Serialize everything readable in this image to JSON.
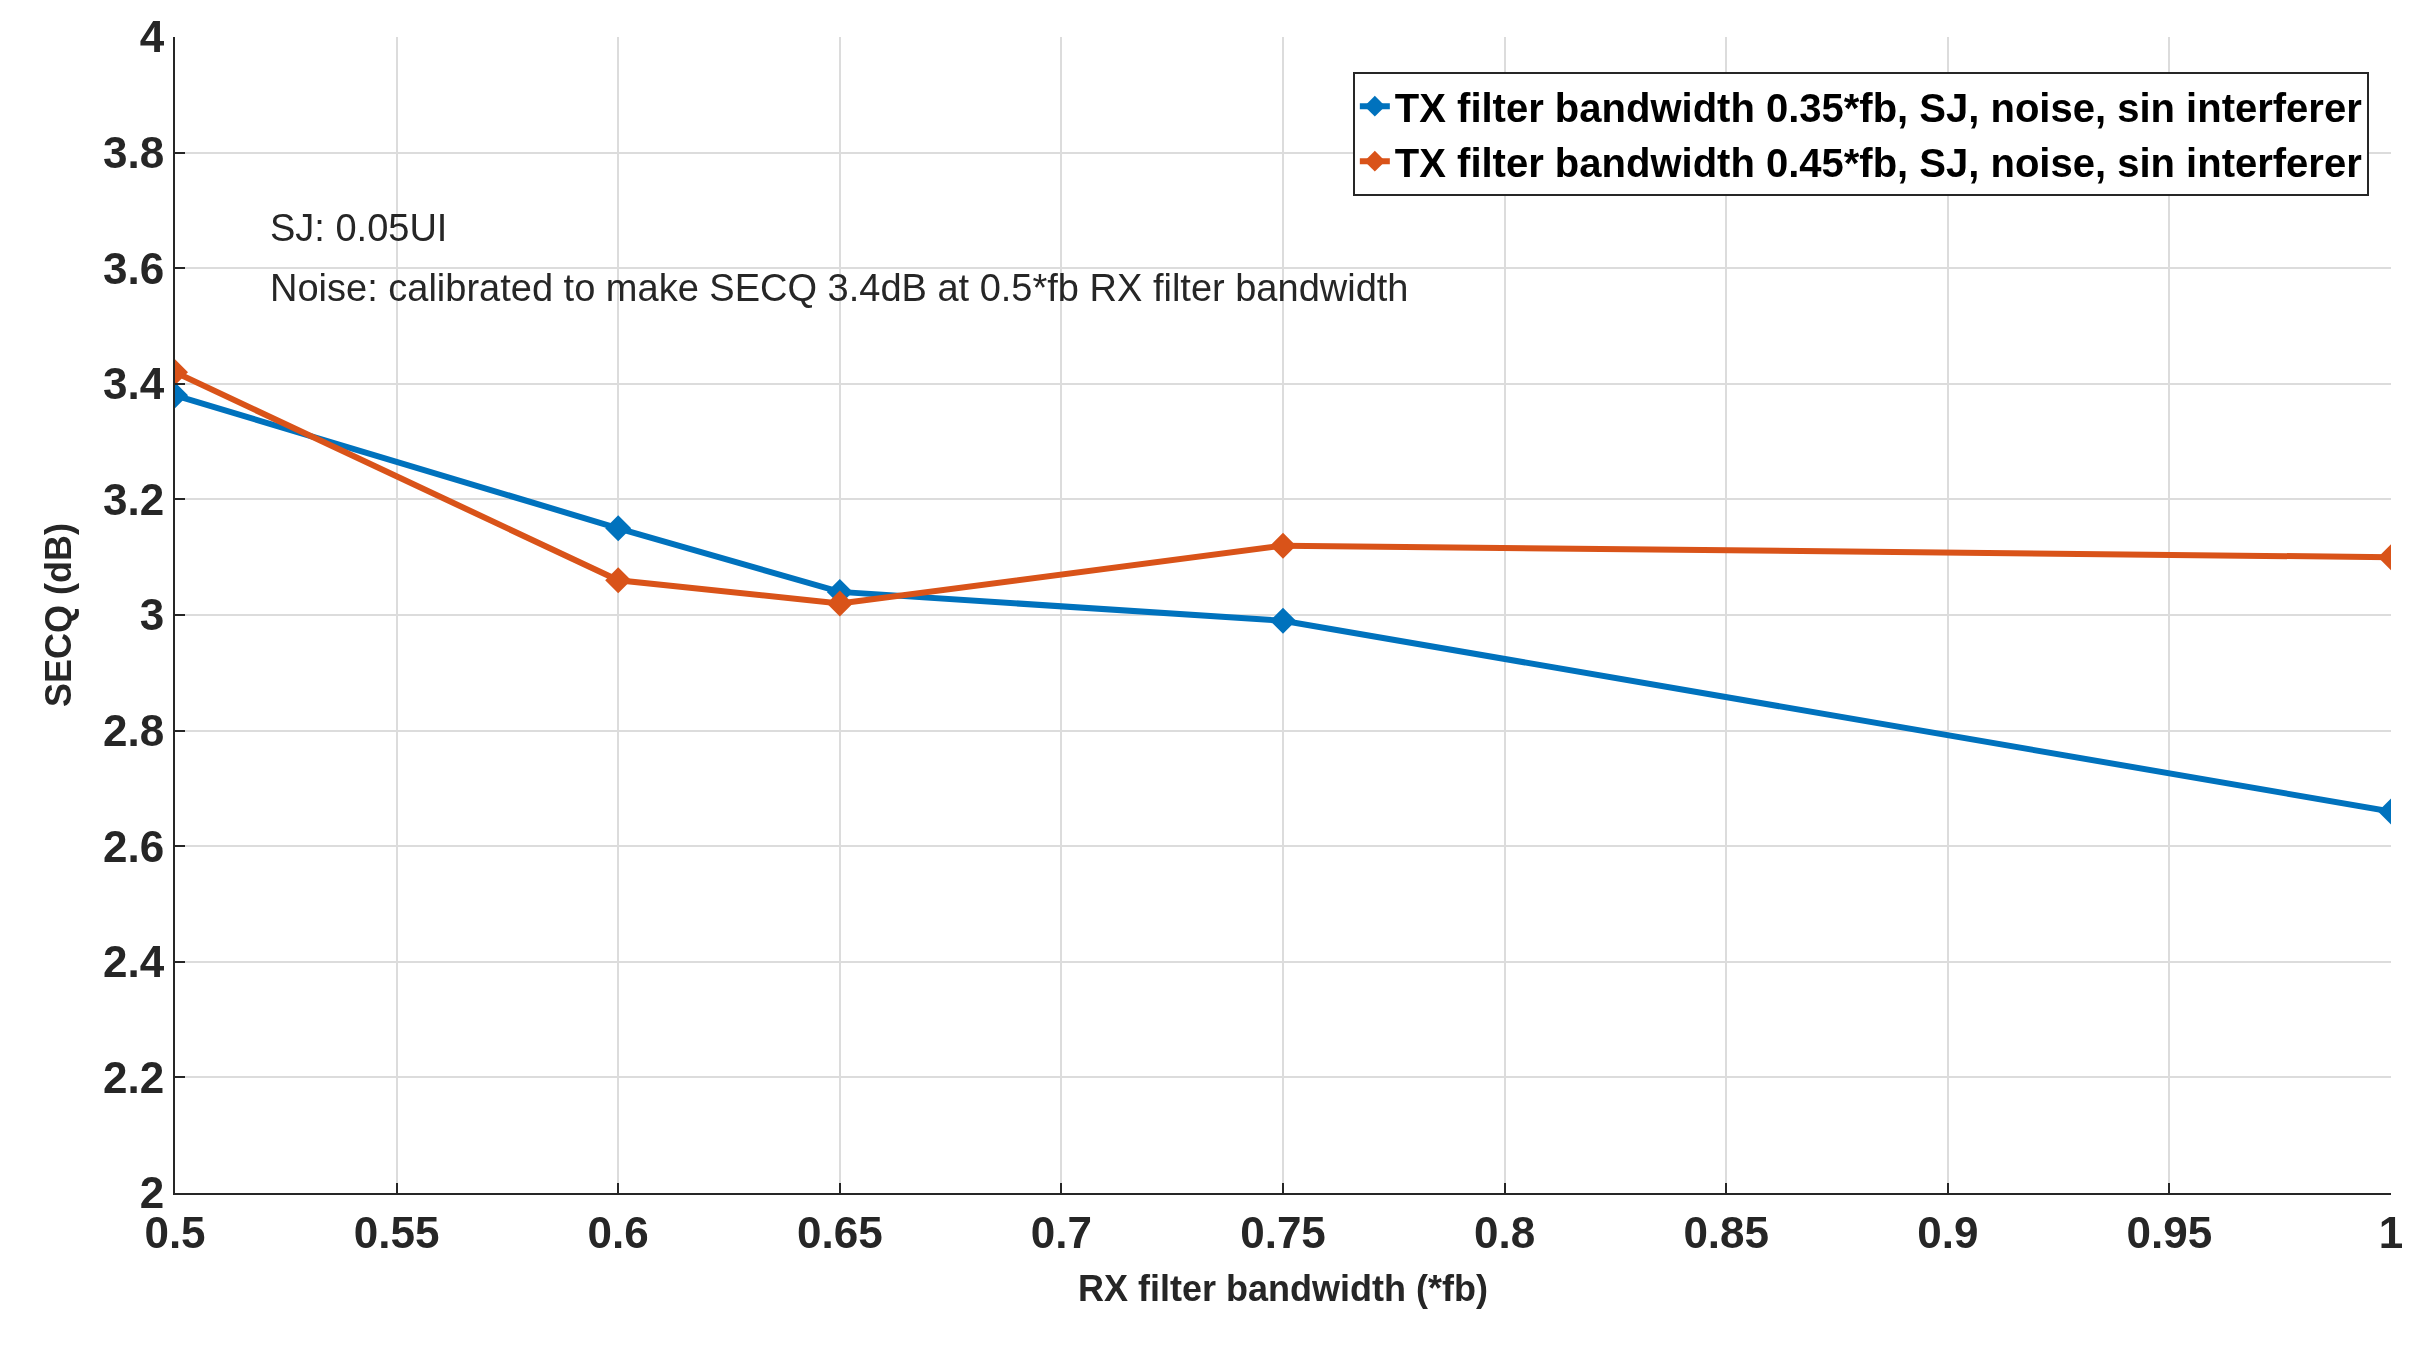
{
  "chart_data": {
    "type": "line",
    "xlabel": "RX filter bandwidth (*fb)",
    "ylabel": "SECQ (dB)",
    "x": [
      0.5,
      0.6,
      0.65,
      0.75,
      1
    ],
    "series": [
      {
        "name": "TX filter bandwidth 0.35*fb, SJ, noise, sin interferer",
        "color": "#0072bd",
        "values": [
          3.38,
          3.15,
          3.04,
          2.99,
          2.66
        ]
      },
      {
        "name": "TX filter bandwidth 0.45*fb, SJ, noise, sin interferer",
        "color": "#d95319",
        "values": [
          3.42,
          3.06,
          3.02,
          3.12,
          3.1
        ]
      }
    ],
    "xlim": [
      0.5,
      1
    ],
    "ylim": [
      2,
      4
    ],
    "xticks": [
      0.5,
      0.55,
      0.6,
      0.65,
      0.7,
      0.75,
      0.8,
      0.85,
      0.9,
      0.95,
      1
    ],
    "yticks": [
      2,
      2.2,
      2.4,
      2.6,
      2.8,
      3,
      3.2,
      3.4,
      3.6,
      3.8,
      4
    ],
    "annotations": [
      "SJ: 0.05UI",
      "Noise: calibrated to make SECQ 3.4dB at 0.5*fb RX filter bandwidth"
    ],
    "grid": true,
    "legend": "top right",
    "marker": "diamond",
    "line_style": "solid"
  }
}
